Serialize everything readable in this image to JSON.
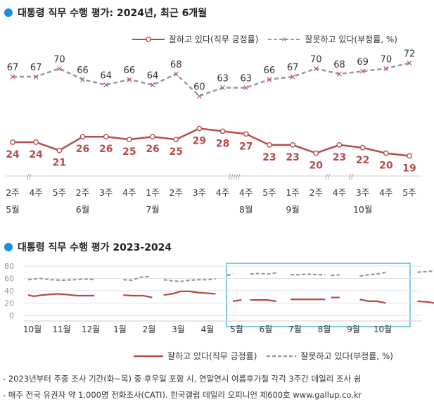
{
  "colors": {
    "approve": "#b84a4a",
    "disapprove": "#999999",
    "accent": "#1a8fe0",
    "highlight_box": "#3aaee0"
  },
  "chart1": {
    "title": "대통령 직무 수행 평가: 2024년, 최근 6개월",
    "legend_approve": "잘하고 있다(직무 긍정률)",
    "legend_disapprove": "잘못하고 있다(부정률, %)",
    "break_marks": [
      "//",
      "/////",
      "//",
      "//"
    ]
  },
  "chart2": {
    "title": "대통령 직무 수행 평가 2023-2024",
    "legend_approve": "잘하고 있다(직무 긍정률)",
    "legend_disapprove": "잘못하고 있다(부정률, %)"
  },
  "footnotes": {
    "line1": "- 2023년부터 주중 조사 기간(화~목) 중 후우일 포함 시, 연말연시 여름후가철 각각 3주간 데일리 조사 쉼",
    "line2": "- 매주 전국 유권자 약 1,000명 전화조사(CATI). 한국갤럽 데일리 오피니언 제600호 www.gallup.co.kr"
  },
  "chart_data": [
    {
      "type": "line",
      "title": "대통령 직무 수행 평가: 2024년, 최근 6개월",
      "categories": [
        "2주",
        "4주",
        "5주",
        "2주",
        "3주",
        "4주",
        "1주",
        "2주",
        "3주",
        "4주",
        "4주",
        "5주",
        "1주",
        "2주",
        "4주",
        "3주",
        "4주",
        "5주"
      ],
      "month_labels": [
        {
          "index": 0,
          "label": "5월"
        },
        {
          "index": 3,
          "label": "6월"
        },
        {
          "index": 6,
          "label": "7월"
        },
        {
          "index": 10,
          "label": "8월"
        },
        {
          "index": 12,
          "label": "9월"
        },
        {
          "index": 15,
          "label": "10월"
        }
      ],
      "series": [
        {
          "name": "잘하고 있다(직무 긍정률)",
          "values": [
            24,
            24,
            21,
            26,
            26,
            25,
            26,
            25,
            29,
            28,
            27,
            23,
            23,
            20,
            23,
            22,
            20,
            19
          ]
        },
        {
          "name": "잘못하고 있다(부정률, %)",
          "values": [
            67,
            67,
            70,
            66,
            64,
            66,
            64,
            68,
            60,
            63,
            63,
            66,
            67,
            70,
            68,
            69,
            70,
            72
          ]
        }
      ],
      "xlabel": "",
      "ylabel": ""
    },
    {
      "type": "line",
      "title": "대통령 직무 수행 평가 2023-2024",
      "x_labels": [
        "10월",
        "11월",
        "12월",
        "1월",
        "2월",
        "3월",
        "4월",
        "5월",
        "6월",
        "7월",
        "8월",
        "9월",
        "10월"
      ],
      "yticks": [
        0,
        20,
        40,
        60,
        80
      ],
      "ylim": [
        0,
        80
      ],
      "series": [
        {
          "name": "잘하고 있다(직무 긍정률)",
          "segments": [
            [
              [
                0,
                33
              ],
              [
                0.2,
                31
              ],
              [
                0.5,
                33
              ],
              [
                1,
                35
              ],
              [
                1.3,
                34
              ],
              [
                1.7,
                32
              ],
              [
                2,
                32
              ],
              [
                2.3,
                32
              ]
            ],
            [
              [
                3.3,
                33
              ],
              [
                3.6,
                32
              ],
              [
                4,
                32
              ],
              [
                4.3,
                29
              ]
            ],
            [
              [
                4.7,
                33
              ],
              [
                5,
                35
              ],
              [
                5.3,
                39
              ],
              [
                5.6,
                39
              ],
              [
                5.9,
                37
              ],
              [
                6.2,
                36
              ],
              [
                6.5,
                35
              ]
            ],
            [
              [
                7.1,
                23
              ],
              [
                7.4,
                25
              ]
            ],
            [
              [
                7.7,
                25
              ],
              [
                8,
                25
              ],
              [
                8.3,
                25
              ],
              [
                8.6,
                23
              ]
            ],
            [
              [
                9.1,
                26
              ],
              [
                9.4,
                26
              ],
              [
                9.7,
                26
              ],
              [
                10,
                26
              ],
              [
                10.3,
                26
              ]
            ],
            [
              [
                10.5,
                29
              ],
              [
                10.8,
                29
              ]
            ],
            [
              [
                11.5,
                26
              ],
              [
                11.8,
                23
              ],
              [
                12.1,
                23
              ],
              [
                12.4,
                20
              ]
            ],
            [
              [
                13.5,
                23
              ],
              [
                13.8,
                22
              ],
              [
                14.1,
                20
              ],
              [
                14.3,
                19
              ]
            ]
          ]
        },
        {
          "name": "잘못하고 있다(부정률, %)",
          "segments": [
            [
              [
                0,
                58
              ],
              [
                0.4,
                60
              ],
              [
                0.8,
                58
              ],
              [
                1.2,
                57
              ],
              [
                1.6,
                58
              ],
              [
                2,
                59
              ],
              [
                2.3,
                58
              ]
            ],
            [
              [
                3.3,
                58
              ],
              [
                3.6,
                57
              ],
              [
                3.9,
                62
              ],
              [
                4.2,
                63
              ]
            ],
            [
              [
                4.7,
                58
              ],
              [
                5,
                56
              ],
              [
                5.3,
                55
              ],
              [
                5.6,
                57
              ],
              [
                5.9,
                58
              ],
              [
                6.2,
                58
              ],
              [
                6.5,
                59
              ]
            ],
            [
              [
                6.9,
                65
              ],
              [
                7.1,
                67
              ]
            ],
            [
              [
                7.7,
                67
              ],
              [
                8,
                68
              ],
              [
                8.3,
                67
              ],
              [
                8.6,
                69
              ]
            ],
            [
              [
                9.1,
                66
              ],
              [
                9.4,
                66
              ],
              [
                9.7,
                67
              ],
              [
                10,
                66
              ],
              [
                10.3,
                66
              ]
            ],
            [
              [
                10.5,
                65
              ],
              [
                10.8,
                66
              ]
            ],
            [
              [
                11.5,
                64
              ],
              [
                11.8,
                66
              ],
              [
                12.1,
                67
              ],
              [
                12.4,
                70
              ]
            ],
            [
              [
                13.5,
                70
              ],
              [
                13.8,
                71
              ],
              [
                14.1,
                72
              ],
              [
                14.3,
                72
              ]
            ]
          ]
        }
      ],
      "highlight": "최근 6개월",
      "xlabel": "",
      "ylabel": ""
    }
  ]
}
